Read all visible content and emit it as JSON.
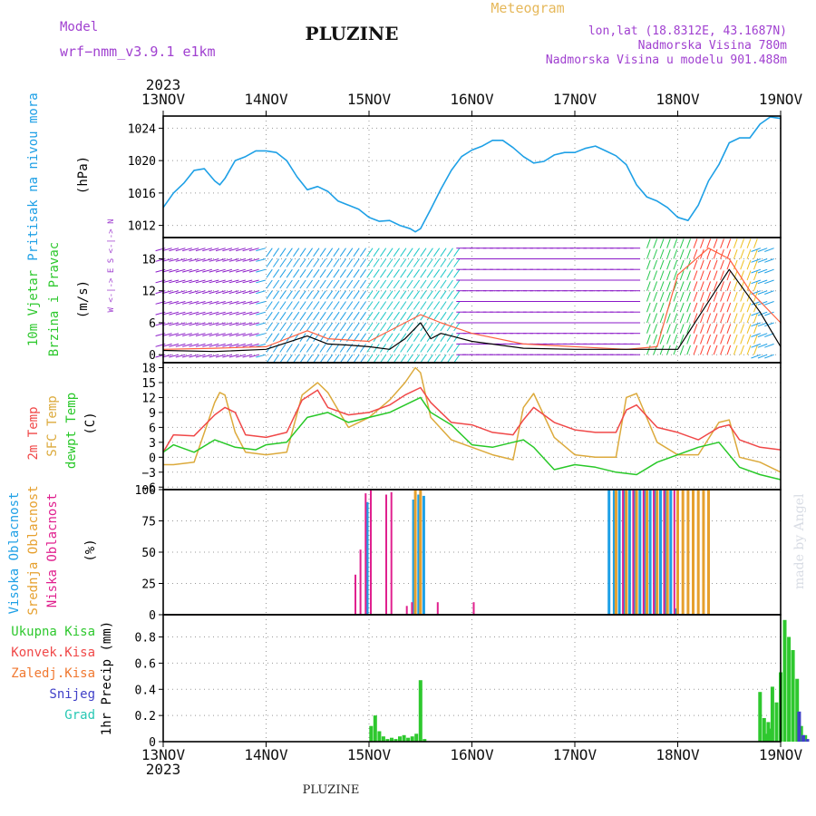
{
  "header": {
    "model_label": "Model",
    "model_value": "wrf−nmm_v3.9.1 e1km",
    "station": "PLUZINE",
    "meteogram": "Meteogram",
    "lonlat": "lon,lat (18.8312E, 43.1687N)",
    "elevation": "Nadmorska Visina 780m",
    "model_elevation": "Nadmorska Visina u modelu 901.488m",
    "footer_station": "PLUZINE",
    "watermark": "made by Angel"
  },
  "time_axis": {
    "year": "2023",
    "ticks": [
      "13NOV",
      "14NOV",
      "15NOV",
      "16NOV",
      "17NOV",
      "18NOV",
      "19NOV"
    ]
  },
  "colors": {
    "pressure": "#1ea0e6",
    "temp2m": "#f04848",
    "sfc": "#dcaa3c",
    "dew": "#28c828",
    "precip": "#2ec82e",
    "low": "#e0208e",
    "mid": "#e6a02e",
    "high": "#1ea0e6",
    "purple": "#a040d0",
    "wind_low": "#8a18c8",
    "snow": "#4040c8",
    "grad": "#28c8b4",
    "convective": "#f04848",
    "frozen": "#f07830"
  },
  "chart_data": [
    {
      "type": "line",
      "panel": "pressure",
      "ylabel": [
        "Pritisak na nivou mora",
        "(hPa)"
      ],
      "yticks": [
        1012,
        1016,
        1020,
        1024
      ],
      "ylim": [
        1010.5,
        1025.5
      ],
      "grid": true,
      "series": [
        {
          "name": "Pritisak na nivou mora",
          "x": [
            0,
            0.1,
            0.2,
            0.3,
            0.4,
            0.5,
            0.55,
            0.6,
            0.7,
            0.8,
            0.9,
            1.0,
            1.1,
            1.2,
            1.3,
            1.4,
            1.5,
            1.6,
            1.7,
            1.8,
            1.9,
            2.0,
            2.1,
            2.2,
            2.3,
            2.4,
            2.45,
            2.5,
            2.6,
            2.7,
            2.8,
            2.9,
            3.0,
            3.1,
            3.2,
            3.3,
            3.4,
            3.5,
            3.6,
            3.7,
            3.8,
            3.9,
            4.0,
            4.1,
            4.2,
            4.3,
            4.4,
            4.5,
            4.6,
            4.7,
            4.8,
            4.9,
            5.0,
            5.1,
            5.2,
            5.3,
            5.4,
            5.5,
            5.6,
            5.7,
            5.8,
            5.9,
            6.0
          ],
          "values": [
            1014.2,
            1016.0,
            1017.2,
            1018.8,
            1019.0,
            1017.5,
            1017.0,
            1017.8,
            1020.0,
            1020.5,
            1021.2,
            1021.2,
            1021.0,
            1020.0,
            1018.0,
            1016.4,
            1016.8,
            1016.2,
            1015.0,
            1014.5,
            1014.0,
            1013.0,
            1012.5,
            1012.6,
            1012.0,
            1011.6,
            1011.2,
            1011.6,
            1014.0,
            1016.5,
            1018.8,
            1020.5,
            1021.3,
            1021.8,
            1022.5,
            1022.5,
            1021.6,
            1020.5,
            1019.7,
            1019.9,
            1020.7,
            1021.0,
            1021.0,
            1021.5,
            1021.8,
            1021.2,
            1020.6,
            1019.5,
            1017.0,
            1015.5,
            1015.0,
            1014.2,
            1013.0,
            1012.6,
            1014.5,
            1017.5,
            1019.5,
            1022.2,
            1022.8,
            1022.8,
            1024.5,
            1025.4,
            1025.2
          ]
        }
      ]
    },
    {
      "type": "line",
      "panel": "wind",
      "ylabel": [
        "10m Vjetar",
        "Brzina i Pravac",
        "(m/s)"
      ],
      "yticks": [
        0,
        6,
        12,
        18
      ],
      "ylim": [
        -1.5,
        22
      ],
      "grid": true,
      "compass": "W <-|-> E   S <-|-> N",
      "series": [
        {
          "name": "Brzina",
          "x": [
            0,
            0.5,
            1.0,
            1.4,
            1.6,
            1.8,
            2.0,
            2.2,
            2.35,
            2.5,
            2.6,
            2.7,
            2.8,
            3.0,
            3.5,
            4.0,
            4.5,
            5.0,
            5.5,
            5.8,
            6.0
          ],
          "values": [
            0.8,
            0.6,
            1.0,
            3.5,
            2.0,
            1.8,
            1.5,
            1.0,
            3.0,
            6.0,
            3.0,
            4.0,
            3.5,
            2.5,
            1.2,
            1.0,
            1.0,
            1.0,
            16.0,
            8.0,
            1.5
          ]
        },
        {
          "name": "Udari",
          "x": [
            0,
            0.5,
            1.0,
            1.4,
            1.6,
            2.0,
            2.5,
            2.7,
            3.0,
            3.5,
            4.0,
            4.5,
            4.8,
            5.0,
            5.3,
            5.5,
            5.7,
            6.0
          ],
          "values": [
            1.0,
            1.2,
            1.5,
            4.5,
            3.0,
            2.5,
            7.5,
            6.0,
            4.0,
            2.0,
            1.5,
            1.0,
            1.5,
            15.0,
            20.0,
            18.0,
            12.0,
            6.0
          ]
        }
      ]
    },
    {
      "type": "line",
      "panel": "temperature",
      "ylabel": [
        "2m Temp",
        "SFC Temp",
        "dewpt Temp",
        "(C)"
      ],
      "yticks": [
        -6,
        -3,
        0,
        3,
        6,
        9,
        12,
        15,
        18
      ],
      "ylim": [
        -6.5,
        19
      ],
      "grid": true,
      "series": [
        {
          "name": "2m Temp",
          "x": [
            0,
            0.1,
            0.3,
            0.5,
            0.6,
            0.7,
            0.8,
            1.0,
            1.2,
            1.35,
            1.5,
            1.6,
            1.8,
            2.0,
            2.2,
            2.35,
            2.5,
            2.6,
            2.8,
            3.0,
            3.2,
            3.4,
            3.5,
            3.6,
            3.8,
            4.0,
            4.2,
            4.4,
            4.5,
            4.6,
            4.8,
            5.0,
            5.2,
            5.4,
            5.5,
            5.6,
            5.8,
            6.0
          ],
          "values": [
            1.0,
            4.5,
            4.3,
            8.5,
            10.0,
            9.0,
            4.5,
            4.0,
            5.0,
            11.5,
            13.5,
            10.0,
            8.5,
            9.0,
            10.5,
            12.5,
            14.0,
            11.0,
            7.0,
            6.5,
            5.0,
            4.5,
            7.5,
            10.0,
            7.0,
            5.5,
            5.0,
            5.0,
            9.5,
            10.5,
            6.0,
            5.0,
            3.5,
            6.0,
            6.5,
            3.5,
            2.0,
            1.5
          ]
        },
        {
          "name": "SFC Temp",
          "x": [
            0,
            0.1,
            0.3,
            0.5,
            0.55,
            0.6,
            0.7,
            0.8,
            1.0,
            1.2,
            1.35,
            1.5,
            1.6,
            1.8,
            2.0,
            2.2,
            2.35,
            2.45,
            2.5,
            2.6,
            2.8,
            3.0,
            3.2,
            3.4,
            3.5,
            3.6,
            3.8,
            4.0,
            4.2,
            4.4,
            4.5,
            4.6,
            4.8,
            5.0,
            5.2,
            5.4,
            5.5,
            5.6,
            5.8,
            6.0
          ],
          "values": [
            -1.5,
            -1.5,
            -1.0,
            11.0,
            13.0,
            12.5,
            5.0,
            1.0,
            0.5,
            1.0,
            12.5,
            15.0,
            13.0,
            6.0,
            8.0,
            11.5,
            15.0,
            18.0,
            17.0,
            8.0,
            3.5,
            2.0,
            0.5,
            -0.5,
            10.0,
            12.8,
            4.0,
            0.5,
            0.0,
            0.0,
            12.0,
            12.8,
            3.0,
            0.5,
            0.5,
            7.0,
            7.5,
            0.0,
            -1.0,
            -3.0
          ]
        },
        {
          "name": "dewpt Temp",
          "x": [
            0,
            0.1,
            0.3,
            0.5,
            0.7,
            0.9,
            1.0,
            1.2,
            1.4,
            1.6,
            1.8,
            2.0,
            2.2,
            2.4,
            2.5,
            2.6,
            2.8,
            3.0,
            3.2,
            3.4,
            3.5,
            3.6,
            3.8,
            4.0,
            4.2,
            4.4,
            4.6,
            4.8,
            5.0,
            5.2,
            5.4,
            5.6,
            5.8,
            6.0
          ],
          "values": [
            1.0,
            2.5,
            1.0,
            3.5,
            2.0,
            1.5,
            2.5,
            3.0,
            8.0,
            9.0,
            7.0,
            8.0,
            9.0,
            11.0,
            12.0,
            9.0,
            6.5,
            2.5,
            2.0,
            3.0,
            3.5,
            2.0,
            -2.5,
            -1.5,
            -2.0,
            -3.0,
            -3.5,
            -1.0,
            0.5,
            2.0,
            3.0,
            -2.0,
            -3.5,
            -4.5
          ]
        }
      ]
    },
    {
      "type": "bar",
      "panel": "cloud",
      "ylabel": [
        "Visoka Oblacnost",
        "Srednja Oblacnost",
        "Niska Oblacnost",
        "(%)"
      ],
      "yticks": [
        0,
        25,
        50,
        75,
        100
      ],
      "ylim": [
        0,
        100
      ],
      "grid": true,
      "series": [
        {
          "name": "Visoka Oblacnost",
          "x": [
            2.0,
            2.45,
            2.5,
            2.55,
            4.35,
            4.4,
            4.45,
            4.5,
            4.55,
            4.6,
            4.65,
            4.7,
            4.75,
            4.8,
            4.85,
            4.9,
            4.95,
            5.0
          ],
          "values": [
            90,
            92,
            96,
            95,
            100,
            100,
            100,
            100,
            100,
            100,
            100,
            100,
            100,
            100,
            100,
            100,
            100,
            5
          ]
        },
        {
          "name": "Srednja Oblacnost",
          "x": [
            2.45,
            2.5,
            4.4,
            4.5,
            4.6,
            4.7,
            4.8,
            4.9,
            5.0,
            5.05,
            5.1,
            5.15,
            5.2,
            5.25,
            5.3
          ],
          "values": [
            100,
            100,
            100,
            100,
            100,
            100,
            100,
            100,
            100,
            100,
            100,
            100,
            100,
            100,
            100
          ]
        },
        {
          "name": "Niska Oblacnost",
          "x": [
            1.85,
            1.9,
            1.95,
            2.0,
            2.15,
            2.2,
            2.35,
            2.4,
            2.65,
            3.0,
            4.45,
            4.55,
            4.65,
            4.75,
            4.85,
            4.95
          ],
          "values": [
            32,
            52,
            97,
            100,
            96,
            98,
            7,
            10,
            10,
            10,
            100,
            100,
            100,
            100,
            100,
            100
          ]
        }
      ]
    },
    {
      "type": "bar",
      "panel": "precip",
      "ylabel": [
        "1hr Precip (mm)"
      ],
      "yticks": [
        0,
        0.2,
        0.4,
        0.6,
        0.8
      ],
      "ylim": [
        0,
        0.97
      ],
      "grid": true,
      "legend": [
        {
          "label": "Ukupna  Kisa",
          "color": "#2ec82e"
        },
        {
          "label": "Konvek.Kisa",
          "color": "#f04848"
        },
        {
          "label": "Zaledj.Kisa",
          "color": "#f07830"
        },
        {
          "label": "Snijeg",
          "color": "#4040c8"
        },
        {
          "label": "Grad",
          "color": "#28c8b4"
        }
      ],
      "series": [
        {
          "name": "Ukupna Kisa",
          "x": [
            2.02,
            2.06,
            2.1,
            2.14,
            2.18,
            2.22,
            2.26,
            2.3,
            2.34,
            2.38,
            2.42,
            2.46,
            2.5,
            2.54,
            5.8,
            5.84,
            5.88,
            5.92,
            5.96,
            6.0,
            6.04,
            6.08,
            6.12,
            6.16,
            6.2,
            6.24,
            5.85,
            5.9
          ],
          "values": [
            0.12,
            0.2,
            0.08,
            0.04,
            0.02,
            0.03,
            0.02,
            0.04,
            0.05,
            0.03,
            0.04,
            0.06,
            0.47,
            0.02,
            0.38,
            0.18,
            0.15,
            0.42,
            0.3,
            0.53,
            0.93,
            0.8,
            0.7,
            0.48,
            0.12,
            0.05,
            0.06,
            0.1
          ]
        },
        {
          "name": "Snijeg",
          "x": [
            6.18,
            6.22,
            6.26
          ],
          "values": [
            0.23,
            0.05,
            0.02
          ]
        }
      ]
    }
  ]
}
